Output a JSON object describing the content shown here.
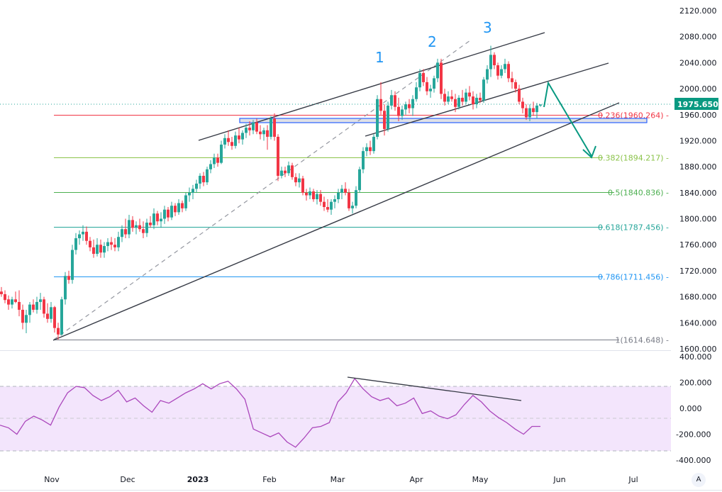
{
  "chart_data": {
    "type": "candlestick",
    "title": "",
    "price_axis": {
      "ticks": [
        "2120.000",
        "2080.000",
        "2040.000",
        "2000.000",
        "1960.000",
        "1920.000",
        "1880.000",
        "1840.000",
        "1800.000",
        "1760.000",
        "1720.000",
        "1680.000",
        "1640.000",
        "1600.000"
      ],
      "range": [
        1600,
        2120
      ]
    },
    "time_axis": {
      "ticks": [
        "Nov",
        "Dec",
        "2023",
        "Feb",
        "Mar",
        "Apr",
        "May",
        "Jun",
        "Jul"
      ]
    },
    "last_price": "1975.650",
    "fibonacci_retracement": [
      {
        "level": "0.236",
        "price": "1960.264",
        "label": "0.236(1960.264)",
        "color": "#f23645"
      },
      {
        "level": "0.382",
        "price": "1894.217",
        "label": "0.382(1894.217)",
        "color": "#8bc34a"
      },
      {
        "level": "0.5",
        "price": "1840.836",
        "label": "0.5(1840.836)",
        "color": "#4caf50"
      },
      {
        "level": "0.618",
        "price": "1787.456",
        "label": "0.618(1787.456)",
        "color": "#26a69a"
      },
      {
        "level": "0.786",
        "price": "1711.456",
        "label": "0.786(1711.456)",
        "color": "#2196f3"
      },
      {
        "level": "1",
        "price": "1614.648",
        "label": "1(1614.648)",
        "color": "#787b86"
      }
    ],
    "annotations": {
      "wave_labels": [
        "1",
        "2",
        "3"
      ],
      "support_zone": [
        1945,
        1952
      ],
      "projection": "rise to channel top ~2010 then drop to ~1894 (0.382)"
    },
    "indicator": {
      "name": "oscillator",
      "ticks": [
        "400.000",
        "200.000",
        "0.000",
        "-200.000",
        "-400.000"
      ],
      "range": [
        -400,
        400
      ],
      "band": [
        -330,
        180
      ],
      "series_approx": [
        -130,
        -150,
        -200,
        -100,
        -60,
        -90,
        -130,
        10,
        120,
        170,
        160,
        100,
        60,
        90,
        140,
        50,
        80,
        20,
        -30,
        60,
        40,
        80,
        120,
        150,
        190,
        150,
        190,
        210,
        150,
        70,
        -160,
        -190,
        -220,
        -190,
        -260,
        -300,
        -230,
        -150,
        -140,
        -110,
        50,
        120,
        230,
        150,
        90,
        60,
        80,
        20,
        40,
        80,
        -40,
        -20,
        -60,
        -80,
        -50,
        30,
        100,
        50,
        -20,
        -70,
        -110,
        -160,
        -200,
        -140,
        -140
      ]
    },
    "colors": {
      "up": "#26a69a",
      "down": "#f23645",
      "indicator_line": "#ab47bc",
      "indicator_band": "#f3e5fc"
    }
  },
  "controls": {
    "auto_scale": "A"
  }
}
